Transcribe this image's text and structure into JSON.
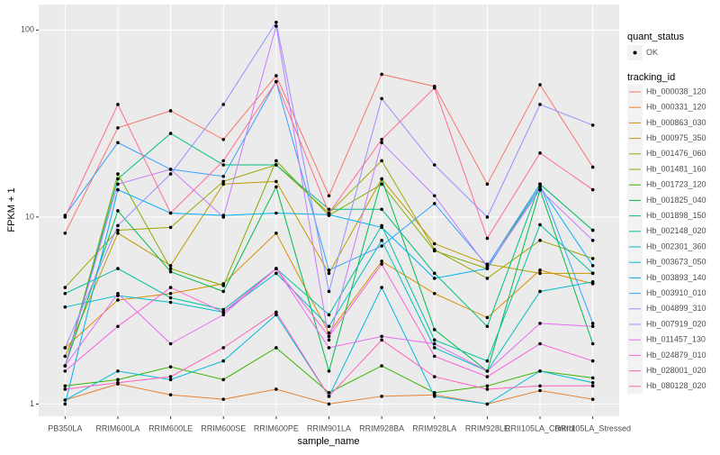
{
  "chart_data": {
    "type": "line",
    "xlabel": "sample_name",
    "ylabel": "FPKM + 1",
    "log_y": true,
    "grid": true,
    "categories": [
      "PB350LA",
      "RRIM600LA",
      "RRIM600LE",
      "RRIM600SE",
      "RRIM600PE",
      "RRIM901LA",
      "RRIM928BA",
      "RRIM928LA",
      "RRIM928LE",
      "RRII105LA_Control",
      "RRII105LA_Stressed"
    ],
    "ylim": [
      0.86,
      137
    ],
    "yticks": [
      1,
      10,
      100
    ],
    "point_legend": {
      "title": "quant_status",
      "label": "OK"
    },
    "legend_title": "tracking_id",
    "series": [
      {
        "name": "Hb_000038_120",
        "color": "#F8766D",
        "values": [
          8.2,
          30,
          37,
          26,
          57,
          13,
          58,
          50,
          15,
          51,
          18.5
        ]
      },
      {
        "name": "Hb_000331_120",
        "color": "#EA8331",
        "values": [
          1.05,
          1.28,
          1.12,
          1.06,
          1.2,
          1.0,
          1.1,
          1.12,
          1.0,
          1.18,
          1.06
        ]
      },
      {
        "name": "Hb_000863_030",
        "color": "#D89000",
        "values": [
          2.0,
          3.6,
          3.9,
          4.4,
          8.2,
          2.4,
          5.8,
          3.9,
          2.9,
          5.2,
          4.4
        ]
      },
      {
        "name": "Hb_000975_350",
        "color": "#C09B00",
        "values": [
          1.8,
          8.2,
          5.5,
          15,
          15.5,
          5.0,
          16,
          7.2,
          5.6,
          5.0,
          5.0
        ]
      },
      {
        "name": "Hb_001476_060",
        "color": "#A3A500",
        "values": [
          4.2,
          8.5,
          8.8,
          15.5,
          19,
          10.5,
          20,
          6.7,
          4.7,
          7.5,
          6.0
        ]
      },
      {
        "name": "Hb_001481_160",
        "color": "#7CAE00",
        "values": [
          1.6,
          17,
          5.3,
          4.3,
          20,
          10.2,
          15,
          6.6,
          5.3,
          15,
          8.5
        ]
      },
      {
        "name": "Hb_001723_120",
        "color": "#39B600",
        "values": [
          1.25,
          1.35,
          1.58,
          1.35,
          2.0,
          1.15,
          1.6,
          1.15,
          1.25,
          1.5,
          1.38
        ]
      },
      {
        "name": "Hb_001825_040",
        "color": "#00BB4E",
        "values": [
          1.6,
          10.8,
          5.1,
          4.0,
          14.5,
          1.5,
          16,
          2.5,
          1.5,
          14,
          2.1
        ]
      },
      {
        "name": "Hb_001898_150",
        "color": "#00BF7D",
        "values": [
          1.6,
          16,
          28,
          19,
          19,
          11,
          11,
          5,
          2.6,
          15,
          8.5
        ]
      },
      {
        "name": "Hb_002148_020",
        "color": "#00C1A3",
        "values": [
          3.9,
          5.3,
          3.7,
          3.2,
          5.3,
          3.0,
          9.0,
          2.2,
          1.7,
          9.1,
          5.0
        ]
      },
      {
        "name": "Hb_002301_360",
        "color": "#00BFC4",
        "values": [
          3.3,
          3.8,
          3.5,
          3.1,
          5.0,
          2.6,
          7.5,
          2.0,
          1.5,
          4.0,
          4.5
        ]
      },
      {
        "name": "Hb_003673_050",
        "color": "#00BAE0",
        "values": [
          1.05,
          1.5,
          1.35,
          1.7,
          3.0,
          1.1,
          4.2,
          1.1,
          1.0,
          1.5,
          1.3
        ]
      },
      {
        "name": "Hb_003893_140",
        "color": "#00B0F6",
        "values": [
          1.0,
          14,
          10.5,
          10.2,
          10.5,
          10.3,
          8.8,
          4.7,
          5.3,
          14.5,
          5.5
        ]
      },
      {
        "name": "Hb_003910_010",
        "color": "#35A2FF",
        "values": [
          10.2,
          25,
          18,
          16.5,
          53,
          5.2,
          7.0,
          11.8,
          5.5,
          15,
          2.7
        ]
      },
      {
        "name": "Hb_004899_310",
        "color": "#9590FF",
        "values": [
          2.0,
          9,
          17,
          40,
          110,
          4,
          43,
          19,
          10,
          40,
          31
        ]
      },
      {
        "name": "Hb_007919_020",
        "color": "#C77CFF",
        "values": [
          1.6,
          15,
          18,
          10,
          105,
          2.2,
          25,
          13,
          5.4,
          14,
          7.5
        ]
      },
      {
        "name": "Hb_011457_130",
        "color": "#E76BF3",
        "values": [
          1.6,
          3.9,
          2.1,
          3.0,
          5.3,
          2.0,
          2.3,
          2.1,
          1.5,
          2.7,
          2.6
        ]
      },
      {
        "name": "Hb_024879_010",
        "color": "#FA62DB",
        "values": [
          1.5,
          2.6,
          4.2,
          3.1,
          5.3,
          2.3,
          5.6,
          1.8,
          1.4,
          2.1,
          1.7
        ]
      },
      {
        "name": "Hb_028001_020",
        "color": "#FF62BC",
        "values": [
          1.2,
          1.3,
          1.4,
          2.0,
          3.1,
          1.1,
          2.2,
          1.4,
          1.2,
          1.25,
          1.25
        ]
      },
      {
        "name": "Hb_080128_020",
        "color": "#FF6C91",
        "values": [
          10,
          40,
          10.5,
          20,
          53,
          10.5,
          26,
          49,
          7.7,
          22,
          14
        ]
      }
    ]
  }
}
